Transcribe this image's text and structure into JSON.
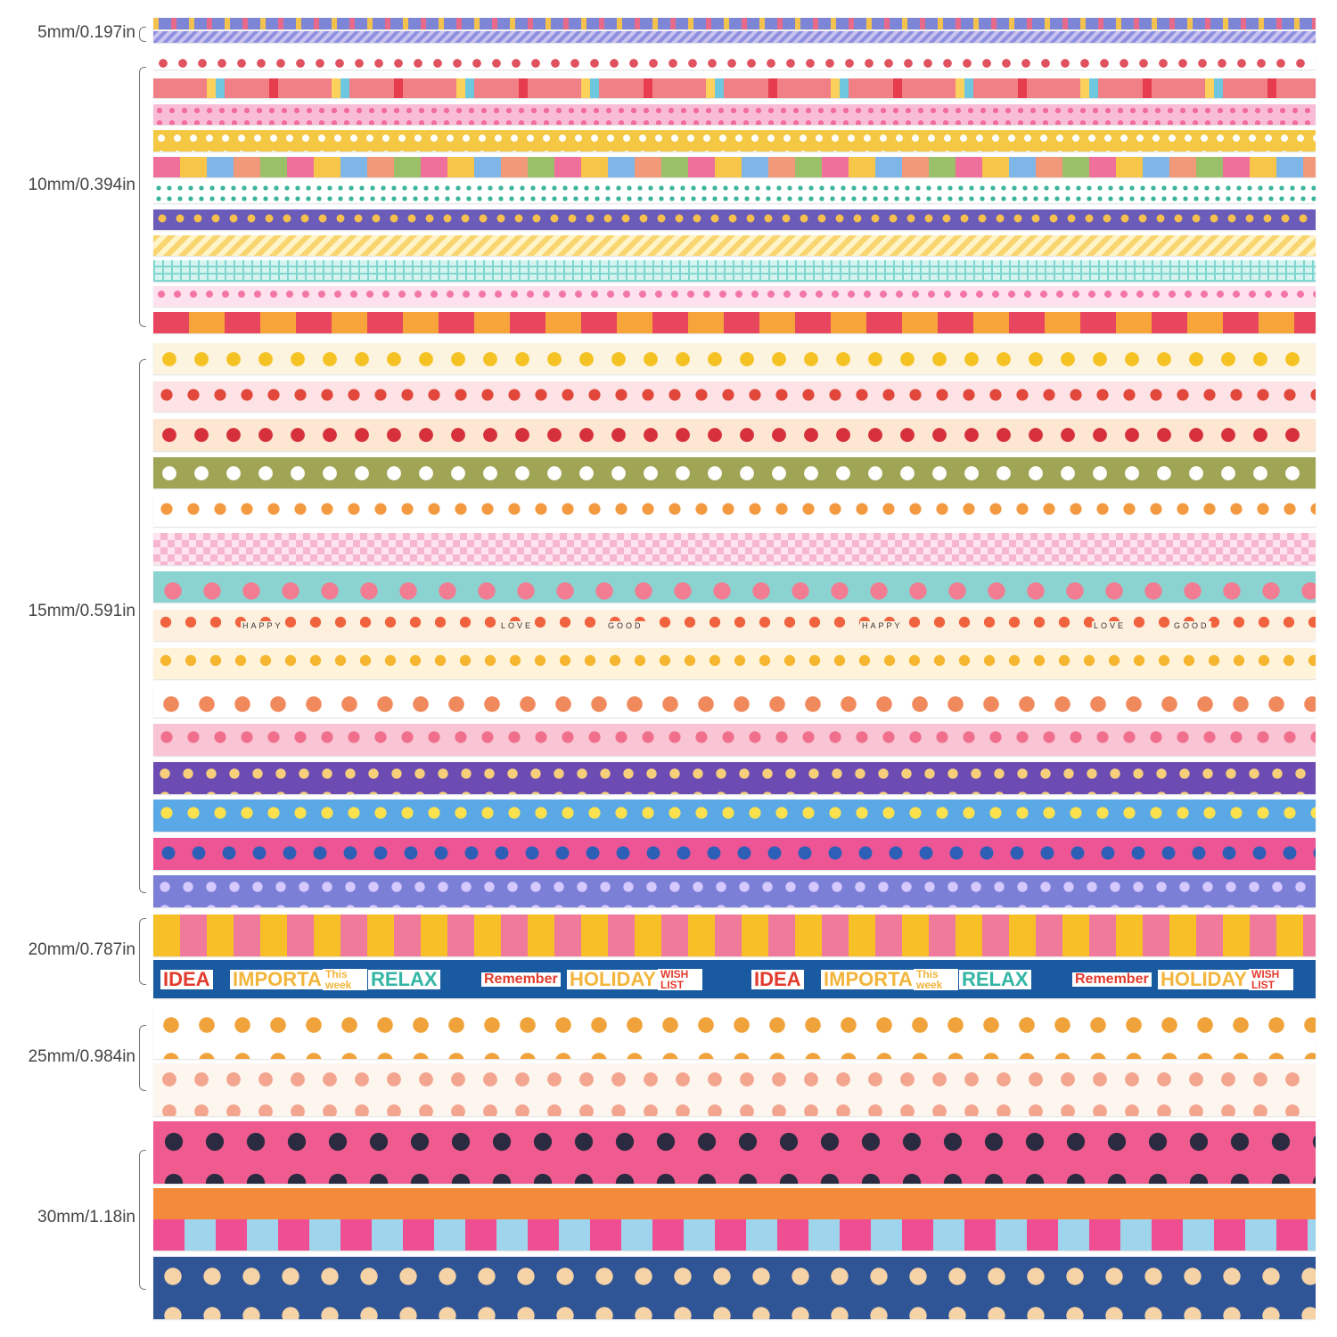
{
  "groups": [
    {
      "label": "5mm/0.197in"
    },
    {
      "label": "10mm/0.394in"
    },
    {
      "label": "15mm/0.591in"
    },
    {
      "label": "20mm/0.787in"
    },
    {
      "label": "25mm/0.984in"
    },
    {
      "label": "30mm/1.18in"
    }
  ],
  "bead_words": [
    "HAPPY",
    "LOVE",
    "GOOD"
  ],
  "tape_words": [
    "IDEA",
    "IMPORTANT",
    "This week",
    "RELAX",
    "Remember",
    "HOLIDAY",
    "WISH LIST"
  ]
}
